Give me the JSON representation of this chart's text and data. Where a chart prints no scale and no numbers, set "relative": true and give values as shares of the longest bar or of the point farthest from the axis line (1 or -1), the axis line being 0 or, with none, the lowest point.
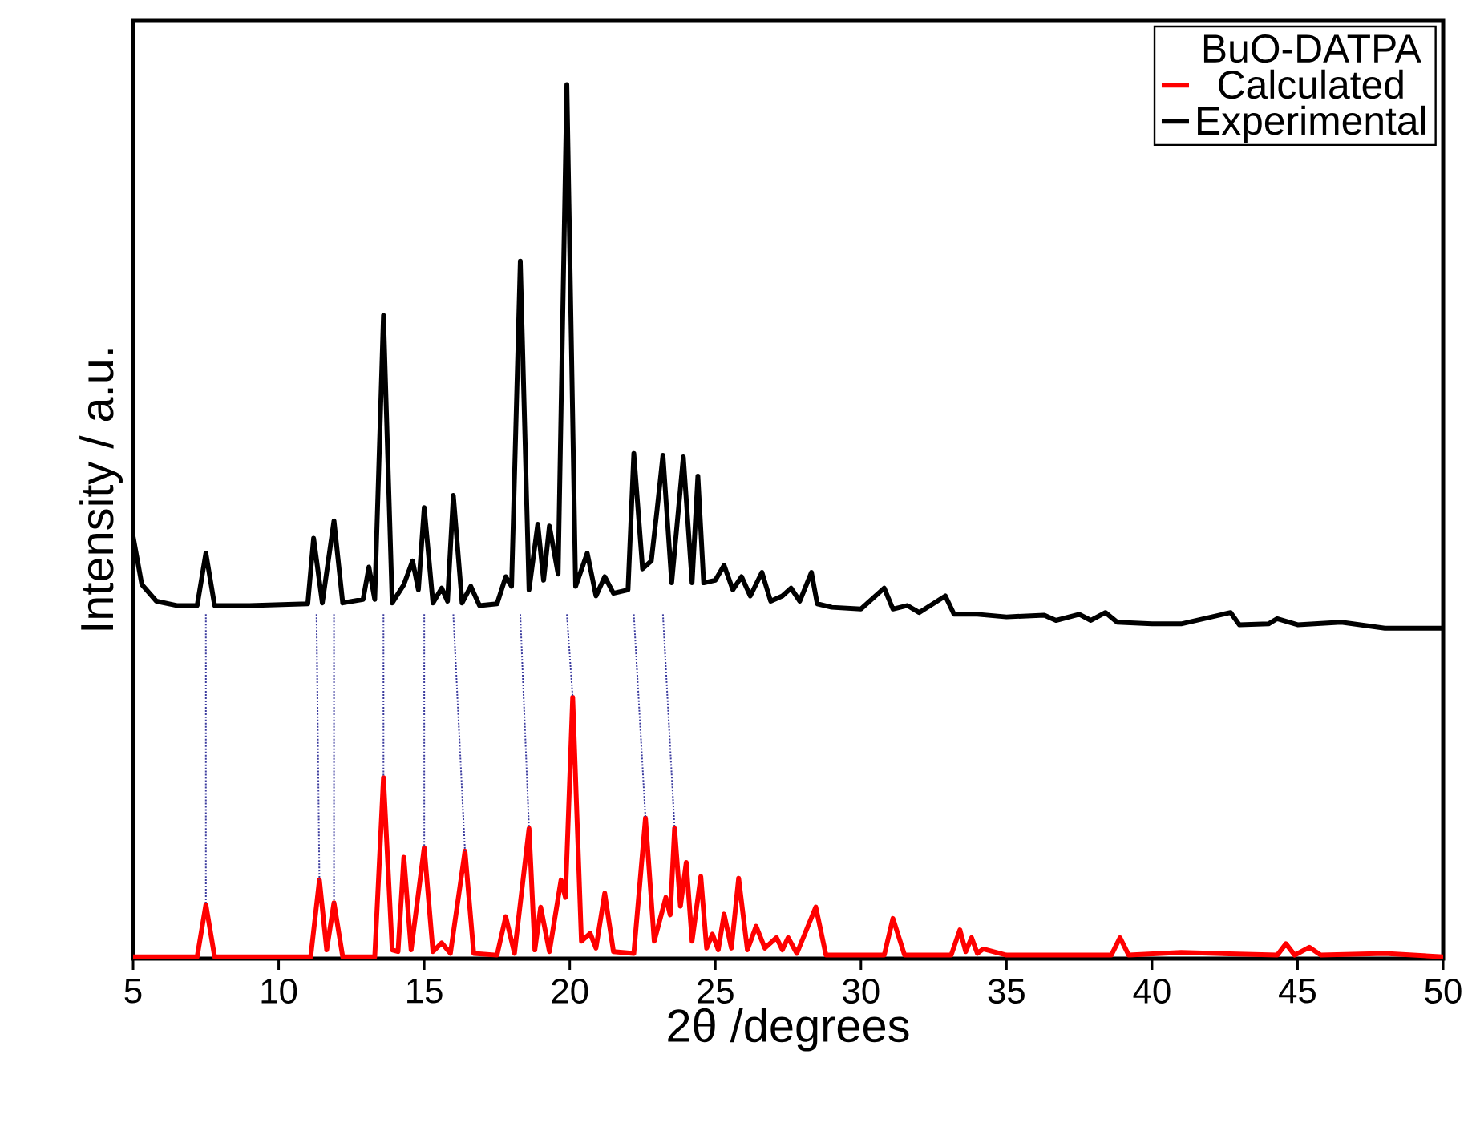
{
  "chart_data": {
    "type": "line",
    "relative": true,
    "xlabel": "2θ /degrees",
    "ylabel": "Intensity / a.u.",
    "legend_title": "BuO-DATPA",
    "legend": "top right",
    "marker": "none",
    "xlim": [
      5,
      50
    ],
    "xticks": [
      5,
      10,
      15,
      20,
      25,
      30,
      35,
      40,
      45,
      50
    ],
    "series": [
      {
        "name": "Calculated",
        "color": "#ff0000",
        "line_style": "solid",
        "x": [
          5,
          7.2,
          7.5,
          7.8,
          11.1,
          11.4,
          11.65,
          11.9,
          12.2,
          13.3,
          13.6,
          13.9,
          14.1,
          14.3,
          14.55,
          15.0,
          15.3,
          15.6,
          15.9,
          16.4,
          16.7,
          17.5,
          17.8,
          18.1,
          18.6,
          18.8,
          19.0,
          19.3,
          19.7,
          19.85,
          20.1,
          20.4,
          20.7,
          20.9,
          21.2,
          21.5,
          22.2,
          22.6,
          22.9,
          23.3,
          23.45,
          23.6,
          23.8,
          24.0,
          24.2,
          24.5,
          24.7,
          24.9,
          25.1,
          25.3,
          25.55,
          25.8,
          26.1,
          26.4,
          26.7,
          27.1,
          27.3,
          27.5,
          27.8,
          28.45,
          28.8,
          30.8,
          31.1,
          31.5,
          33.1,
          33.4,
          33.6,
          33.8,
          34.0,
          34.2,
          35,
          38.6,
          38.9,
          39.2,
          41,
          44.3,
          44.6,
          44.9,
          45.4,
          45.8,
          48,
          50
        ],
        "values": [
          0.002,
          0.002,
          0.062,
          0.002,
          0.002,
          0.09,
          0.01,
          0.064,
          0.002,
          0.002,
          0.207,
          0.01,
          0.008,
          0.116,
          0.01,
          0.127,
          0.008,
          0.018,
          0.006,
          0.123,
          0.006,
          0.004,
          0.048,
          0.006,
          0.149,
          0.01,
          0.059,
          0.008,
          0.09,
          0.07,
          0.299,
          0.02,
          0.029,
          0.012,
          0.075,
          0.008,
          0.006,
          0.161,
          0.02,
          0.07,
          0.05,
          0.149,
          0.06,
          0.11,
          0.02,
          0.094,
          0.012,
          0.028,
          0.01,
          0.051,
          0.012,
          0.092,
          0.01,
          0.037,
          0.012,
          0.024,
          0.01,
          0.024,
          0.006,
          0.059,
          0.004,
          0.004,
          0.046,
          0.004,
          0.004,
          0.033,
          0.008,
          0.024,
          0.006,
          0.011,
          0.004,
          0.004,
          0.024,
          0.004,
          0.007,
          0.004,
          0.017,
          0.004,
          0.013,
          0.004,
          0.006,
          0.002
        ]
      },
      {
        "name": "Experimental",
        "color": "#000000",
        "line_style": "solid",
        "x": [
          5.0,
          5.3,
          5.8,
          6.5,
          7.2,
          7.5,
          7.8,
          9,
          11,
          11.2,
          11.5,
          11.9,
          12.2,
          12.9,
          13.1,
          13.3,
          13.6,
          13.9,
          14.3,
          14.6,
          14.8,
          15.0,
          15.3,
          15.6,
          15.8,
          16.0,
          16.3,
          16.6,
          16.9,
          17.5,
          17.8,
          18.0,
          18.3,
          18.6,
          18.9,
          19.1,
          19.3,
          19.6,
          19.9,
          20.2,
          20.6,
          20.9,
          21.2,
          21.5,
          22.0,
          22.2,
          22.5,
          22.8,
          23.0,
          23.2,
          23.5,
          23.9,
          24.2,
          24.4,
          24.6,
          25.0,
          25.3,
          25.6,
          25.9,
          26.2,
          26.6,
          26.9,
          27.3,
          27.6,
          27.9,
          28.3,
          28.5,
          29,
          30,
          30.8,
          31.1,
          31.6,
          32,
          32.9,
          33.2,
          34,
          35,
          36.3,
          36.7,
          37.5,
          37.9,
          38.4,
          38.8,
          40,
          41,
          42.7,
          43,
          44,
          44.3,
          45,
          46.5,
          48,
          50
        ],
        "values": [
          0.483,
          0.428,
          0.409,
          0.404,
          0.404,
          0.464,
          0.404,
          0.404,
          0.406,
          0.481,
          0.407,
          0.501,
          0.407,
          0.411,
          0.448,
          0.411,
          0.736,
          0.407,
          0.428,
          0.455,
          0.422,
          0.516,
          0.407,
          0.424,
          0.409,
          0.53,
          0.407,
          0.426,
          0.404,
          0.406,
          0.437,
          0.426,
          0.798,
          0.422,
          0.497,
          0.433,
          0.495,
          0.44,
          1,
          0.426,
          0.464,
          0.415,
          0.437,
          0.418,
          0.422,
          0.578,
          0.446,
          0.455,
          0.514,
          0.576,
          0.43,
          0.574,
          0.43,
          0.552,
          0.43,
          0.433,
          0.45,
          0.422,
          0.437,
          0.415,
          0.442,
          0.409,
          0.415,
          0.424,
          0.409,
          0.442,
          0.406,
          0.402,
          0.4,
          0.424,
          0.4,
          0.404,
          0.396,
          0.415,
          0.394,
          0.394,
          0.391,
          0.393,
          0.387,
          0.394,
          0.387,
          0.396,
          0.385,
          0.383,
          0.383,
          0.396,
          0.382,
          0.383,
          0.389,
          0.382,
          0.385,
          0.378,
          0.378
        ]
      },
      {
        "type": "line",
        "color": "#3b3b9e",
        "line_style": "dotted",
        "x": [
          7.5,
          7.5,
          null,
          11.3,
          11.4,
          null,
          11.9,
          11.9,
          null,
          13.6,
          13.6,
          null,
          15.0,
          15.0,
          null,
          16.0,
          16.4,
          null,
          18.3,
          18.6,
          null,
          19.9,
          20.1,
          null,
          22.2,
          22.6,
          null,
          23.2,
          23.6
        ],
        "values": [
          0.394,
          0.062,
          null,
          0.394,
          0.09,
          null,
          0.394,
          0.064,
          null,
          0.394,
          0.207,
          null,
          0.394,
          0.127,
          null,
          0.394,
          0.123,
          null,
          0.394,
          0.149,
          null,
          0.394,
          0.299,
          null,
          0.394,
          0.161,
          null,
          0.394,
          0.149
        ]
      }
    ]
  }
}
